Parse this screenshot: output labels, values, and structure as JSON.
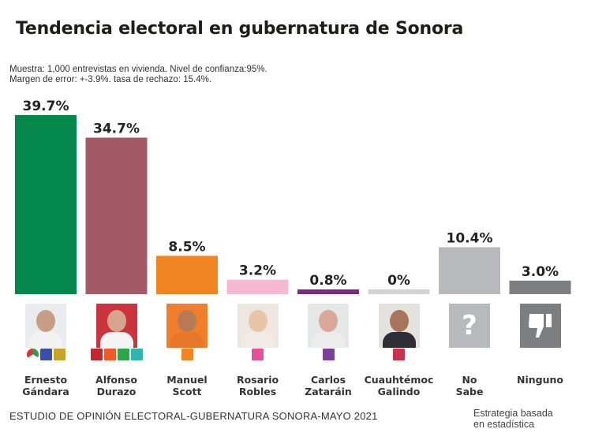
{
  "header": {
    "title": "Tendencia electoral en gubernatura de Sonora",
    "methodology_line1": "Muestra: 1,000 entrevistas en vivienda. Nivel de confianza:95%.",
    "methodology_line2": "Margen de error: +-3.9%. tasa de rechazo: 15.4%."
  },
  "footer": {
    "study": "ESTUDIO DE OPINIÓN ELECTORAL-GUBERNATURA SONORA-MAYO 2021",
    "brand_line1": "Estrategia basada",
    "brand_line2": "en estadística"
  },
  "chart_data": {
    "type": "bar",
    "title": "Tendencia electoral en gubernatura de Sonora",
    "xlabel": "",
    "ylabel": "",
    "ylim": [
      0,
      40
    ],
    "grid": false,
    "categories": [
      "Ernesto Gándara",
      "Alfonso Durazo",
      "Manuel Scott",
      "Rosario Robles",
      "Carlos Zataráin",
      "Cuauhtémoc Galindo",
      "No Sabe",
      "Ninguno"
    ],
    "values": [
      39.7,
      34.7,
      8.5,
      3.2,
      0.8,
      0,
      10.4,
      3.0
    ],
    "data_labels": [
      "39.7%",
      "34.7%",
      "8.5%",
      "3.2%",
      "0.8%",
      "0%",
      "10.4%",
      "3.0%"
    ],
    "colors": [
      "#04874a",
      "#a35a66",
      "#f18522",
      "#f5b8d3",
      "#7b2a7d",
      "#d3d3d5",
      "#b8b9bc",
      "#7d7e81"
    ]
  },
  "candidates": [
    {
      "name_line1": "Ernesto",
      "name_line2": "Gándara",
      "photo_bg": "#e9ecef",
      "face": "#c79d86",
      "body": "#f2f2f2",
      "parties": [
        "pri-logo",
        "pan-logo",
        "prd-logo"
      ],
      "party_colors": [
        "#ffffff",
        "#3b4fa8",
        "#c9a227"
      ]
    },
    {
      "name_line1": "Alfonso",
      "name_line2": "Durazo",
      "photo_bg": "#c9343d",
      "face": "#d6a48f",
      "body": "#f4f4f4",
      "parties": [
        "morena-logo",
        "pt-logo",
        "pvem-logo",
        "panal-logo"
      ],
      "party_colors": [
        "#c2272d",
        "#f05a28",
        "#2ba84a",
        "#2cb7b0"
      ]
    },
    {
      "name_line1": "Manuel",
      "name_line2": "Scott",
      "photo_bg": "#f07e2a",
      "face": "#b87a55",
      "body": "#e8772a",
      "parties": [
        "movimiento-ciudadano-logo"
      ],
      "party_colors": [
        "#f18522"
      ]
    },
    {
      "name_line1": "Rosario",
      "name_line2": "Robles",
      "photo_bg": "#efe6e2",
      "face": "#e8c4a8",
      "body": "#f2eae6",
      "parties": [
        "fuerza-por-mexico-logo"
      ],
      "party_colors": [
        "#e8509a"
      ]
    },
    {
      "name_line1": "Carlos",
      "name_line2": "Zataráin",
      "photo_bg": "#e4e8e6",
      "face": "#d9a898",
      "body": "#ececec",
      "parties": [
        "pes-logo"
      ],
      "party_colors": [
        "#7b3f9e"
      ]
    },
    {
      "name_line1": "Cuauhtémoc",
      "name_line2": "Galindo",
      "photo_bg": "#e3e2de",
      "face": "#a8745c",
      "body": "#2d2f36",
      "parties": [
        "rsp-logo"
      ],
      "party_colors": [
        "#c8324a"
      ]
    },
    {
      "name_line1": "No",
      "name_line2": "Sabe",
      "icon": "question-mark-icon",
      "glyph": "?",
      "box_color": "#b8b9bc"
    },
    {
      "name_line1": "Ninguno",
      "name_line2": "",
      "icon": "thumbs-down-icon",
      "glyph": "",
      "box_color": "#7d7e81"
    }
  ]
}
